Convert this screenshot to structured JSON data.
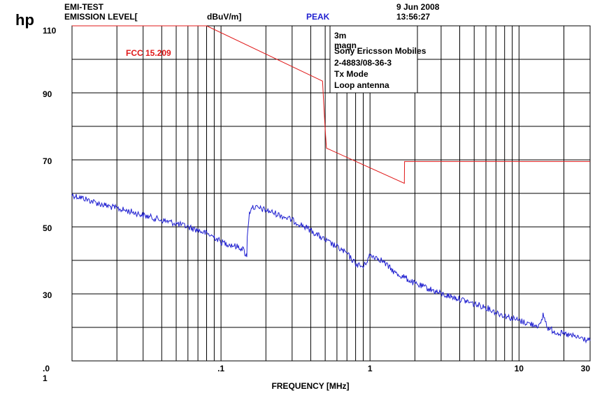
{
  "header": {
    "logo": "hp",
    "test_name": "EMI-TEST",
    "level_label": "EMISSION LEVEL[",
    "unit": "dBuV/m]",
    "detector": "PEAK",
    "date": "9 Jun 2008",
    "time": "13:56:27"
  },
  "annotations": [
    "3m",
    "magn",
    "Sony Ericsson Mobiles",
    "2-4883/08-36-3",
    "Tx Mode",
    "Loop antenna"
  ],
  "colors": {
    "limit": "#e01818",
    "trace": "#1f1fd0",
    "grid": "#000000"
  },
  "chart_data": {
    "type": "line",
    "xlabel": "FREQUENCY [MHz]",
    "x_scale": "log",
    "xlim": [
      0.01,
      30
    ],
    "ylim": [
      10,
      110
    ],
    "x_tick_labels": [
      {
        "value": 0.01,
        "label": ".0"
      },
      {
        "value": 0.1,
        "label": ".1"
      },
      {
        "value": 1,
        "label": "1"
      },
      {
        "value": 10,
        "label": "10"
      },
      {
        "value": 30,
        "label": "30"
      }
    ],
    "x_tick_sublabel": "1",
    "y_tick_labels": [
      {
        "value": 110,
        "label": "110"
      },
      {
        "value": 90,
        "label": "90"
      },
      {
        "value": 70,
        "label": "70"
      },
      {
        "value": 50,
        "label": "50"
      },
      {
        "value": 30,
        "label": "30"
      }
    ],
    "grid": true,
    "series": [
      {
        "name": "FCC 15.209",
        "color": "#e01818",
        "x": [
          0.01,
          0.08,
          0.48,
          0.49,
          0.5,
          0.51,
          1.7,
          1.705,
          30
        ],
        "y": [
          110,
          110,
          93.5,
          86,
          79,
          73.5,
          63,
          69.5,
          69.5
        ]
      },
      {
        "color": "#1f1fd0",
        "x": [
          0.01,
          0.012,
          0.015,
          0.02,
          0.025,
          0.03,
          0.04,
          0.05,
          0.06,
          0.07,
          0.08,
          0.09,
          0.1,
          0.12,
          0.14,
          0.149,
          0.15,
          0.155,
          0.16,
          0.18,
          0.2,
          0.25,
          0.3,
          0.35,
          0.4,
          0.5,
          0.6,
          0.7,
          0.8,
          0.9,
          1.0,
          1.1,
          1.2,
          1.3,
          1.5,
          1.7,
          2.0,
          2.5,
          3.0,
          4.0,
          5.0,
          6.0,
          7.0,
          8.0,
          10.0,
          12.0,
          14.0,
          14.5,
          15.0,
          15.5,
          16.0,
          18.0,
          20.0,
          25.0,
          30.0
        ],
        "y": [
          59.5,
          58.5,
          57,
          55.5,
          54.5,
          53.5,
          52,
          51,
          50,
          49,
          48,
          47,
          45.5,
          44.5,
          43.5,
          41,
          47,
          54,
          56,
          55.5,
          55,
          53.5,
          52,
          50.5,
          49,
          46,
          44,
          42,
          39,
          38,
          41.5,
          41,
          40,
          38.5,
          36,
          35,
          33,
          31.5,
          30,
          28.5,
          27,
          26,
          24.5,
          23.5,
          22,
          21,
          20.5,
          24,
          22,
          20,
          19.5,
          18.5,
          18,
          17,
          16
        ]
      }
    ]
  }
}
